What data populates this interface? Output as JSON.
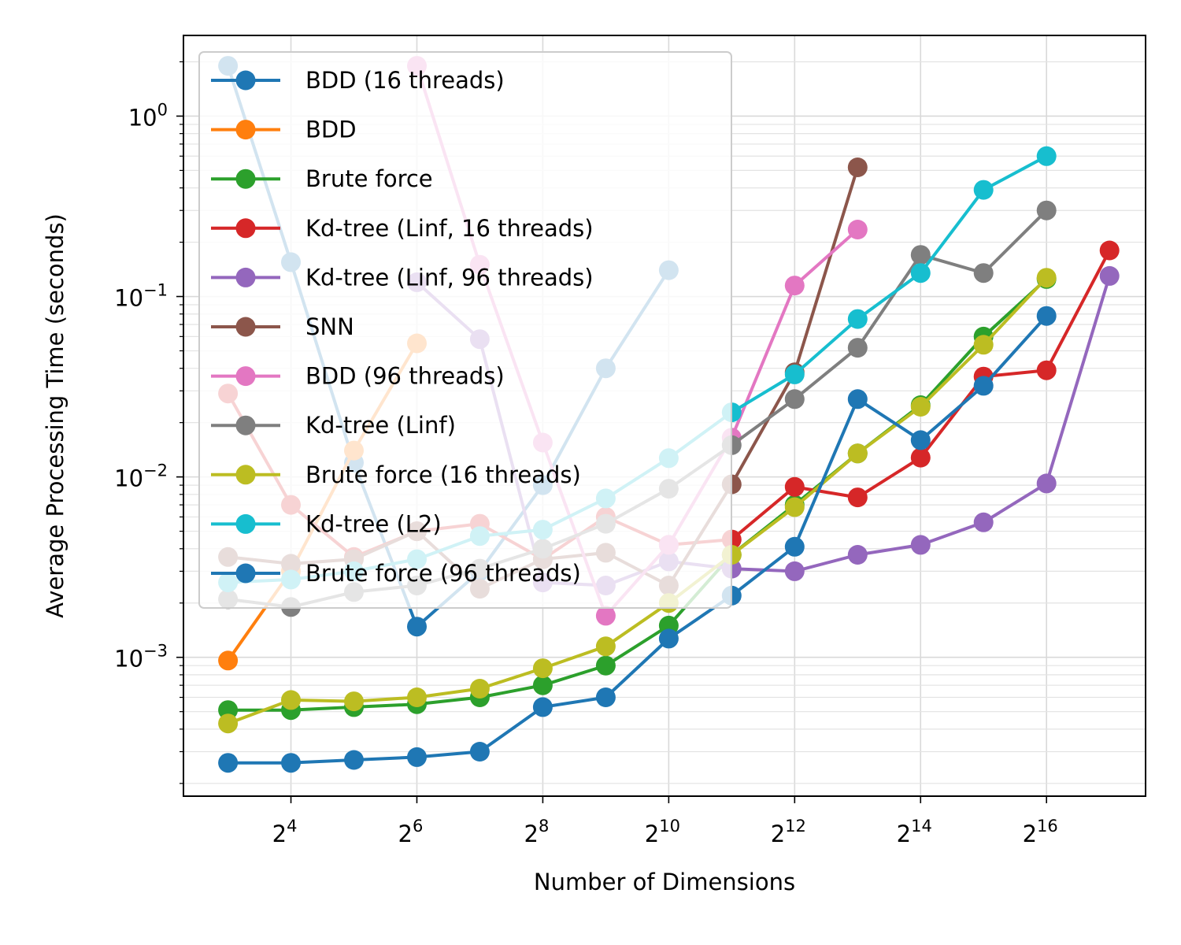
{
  "chart_data": {
    "type": "line",
    "xlabel": "Number of Dimensions",
    "ylabel": "Average Processing Time (seconds)",
    "xscale": "log2",
    "yscale": "log10",
    "xlim": [
      4.9,
      195000
    ],
    "ylim": [
      0.00017,
      2.8
    ],
    "x_ticks": [
      {
        "value": 16,
        "base": "2",
        "exp": "4"
      },
      {
        "value": 64,
        "base": "2",
        "exp": "6"
      },
      {
        "value": 256,
        "base": "2",
        "exp": "8"
      },
      {
        "value": 1024,
        "base": "2",
        "exp": "10"
      },
      {
        "value": 4096,
        "base": "2",
        "exp": "12"
      },
      {
        "value": 16384,
        "base": "2",
        "exp": "14"
      },
      {
        "value": 65536,
        "base": "2",
        "exp": "16"
      }
    ],
    "y_ticks": [
      {
        "value": 0.001,
        "base": "10",
        "exp": "−3"
      },
      {
        "value": 0.01,
        "base": "10",
        "exp": "−2"
      },
      {
        "value": 0.1,
        "base": "10",
        "exp": "−1"
      },
      {
        "value": 1,
        "base": "10",
        "exp": "0"
      }
    ],
    "grid": true,
    "legend_position": "top-left",
    "series": [
      {
        "name": "BDD (16 threads)",
        "color": "#1f77b4",
        "x": [
          8,
          16,
          32,
          64,
          128,
          256,
          512,
          1024
        ],
        "y": [
          1.9,
          0.155,
          0.012,
          0.00148,
          0.003,
          0.009,
          0.04,
          0.14
        ]
      },
      {
        "name": "BDD",
        "color": "#ff7f0e",
        "x": [
          8,
          16,
          32,
          64
        ],
        "y": [
          0.00096,
          0.003,
          0.014,
          0.055
        ]
      },
      {
        "name": "Brute force",
        "color": "#2ca02c",
        "x": [
          8,
          16,
          32,
          64,
          128,
          256,
          512,
          1024,
          2048,
          4096,
          8192,
          16384,
          32768,
          65536
        ],
        "y": [
          0.00051,
          0.00051,
          0.00053,
          0.00055,
          0.0006,
          0.0007,
          0.0009,
          0.0015,
          0.0037,
          0.007,
          0.0135,
          0.025,
          0.06,
          0.125
        ]
      },
      {
        "name": "Kd-tree (Linf, 16 threads)",
        "color": "#d62728",
        "x": [
          8,
          16,
          32,
          64,
          128,
          256,
          512,
          1024,
          2048,
          4096,
          8192,
          16384,
          32768,
          65536,
          131072
        ],
        "y": [
          0.029,
          0.007,
          0.0036,
          0.005,
          0.0055,
          0.0035,
          0.006,
          0.0042,
          0.0045,
          0.0088,
          0.0077,
          0.0128,
          0.036,
          0.039,
          0.18
        ]
      },
      {
        "name": "Kd-tree (Linf, 96 threads)",
        "color": "#9467bd",
        "x": [
          64,
          128,
          256,
          512,
          1024,
          2048,
          4096,
          8192,
          16384,
          32768,
          65536,
          131072
        ],
        "y": [
          0.12,
          0.058,
          0.0026,
          0.0025,
          0.0034,
          0.0031,
          0.003,
          0.0037,
          0.0042,
          0.0056,
          0.0092,
          0.13
        ]
      },
      {
        "name": "SNN",
        "color": "#8c564b",
        "x": [
          8,
          16,
          32,
          64,
          128,
          256,
          512,
          1024,
          2048,
          4096,
          8192
        ],
        "y": [
          0.0036,
          0.0033,
          0.0035,
          0.005,
          0.0024,
          0.0035,
          0.0038,
          0.0025,
          0.0091,
          0.038,
          0.52
        ]
      },
      {
        "name": "BDD (96 threads)",
        "color": "#e377c2",
        "x": [
          64,
          128,
          256,
          512,
          1024,
          2048,
          4096,
          8192
        ],
        "y": [
          1.9,
          0.15,
          0.0155,
          0.0017,
          0.0042,
          0.0165,
          0.115,
          0.235
        ]
      },
      {
        "name": "Kd-tree (Linf)",
        "color": "#7f7f7f",
        "x": [
          8,
          16,
          32,
          64,
          128,
          256,
          512,
          1024,
          2048,
          4096,
          8192,
          16384,
          32768,
          65536
        ],
        "y": [
          0.0021,
          0.0019,
          0.0023,
          0.0025,
          0.0031,
          0.004,
          0.0055,
          0.0086,
          0.015,
          0.027,
          0.052,
          0.17,
          0.135,
          0.3
        ]
      },
      {
        "name": "Brute force (16 threads)",
        "color": "#bcbd22",
        "x": [
          8,
          16,
          32,
          64,
          128,
          256,
          512,
          1024,
          2048,
          4096,
          8192,
          16384,
          32768,
          65536
        ],
        "y": [
          0.00043,
          0.00058,
          0.00057,
          0.0006,
          0.00067,
          0.00087,
          0.00115,
          0.002,
          0.0037,
          0.0068,
          0.0135,
          0.0245,
          0.054,
          0.127
        ]
      },
      {
        "name": "Kd-tree (L2)",
        "color": "#17becf",
        "x": [
          8,
          16,
          32,
          64,
          128,
          256,
          512,
          1024,
          2048,
          4096,
          8192,
          16384,
          32768,
          65536
        ],
        "y": [
          0.0026,
          0.0027,
          0.003,
          0.0035,
          0.0047,
          0.0051,
          0.0076,
          0.0127,
          0.0228,
          0.037,
          0.075,
          0.135,
          0.39,
          0.6
        ]
      },
      {
        "name": "Brute force (96 threads)",
        "color": "#1f77b4",
        "x": [
          8,
          16,
          32,
          64,
          128,
          256,
          512,
          1024,
          2048,
          4096,
          8192,
          16384,
          32768,
          65536
        ],
        "y": [
          0.00026,
          0.00026,
          0.00027,
          0.00028,
          0.0003,
          0.00053,
          0.0006,
          0.00127,
          0.0022,
          0.0041,
          0.027,
          0.016,
          0.032,
          0.078
        ]
      }
    ]
  }
}
